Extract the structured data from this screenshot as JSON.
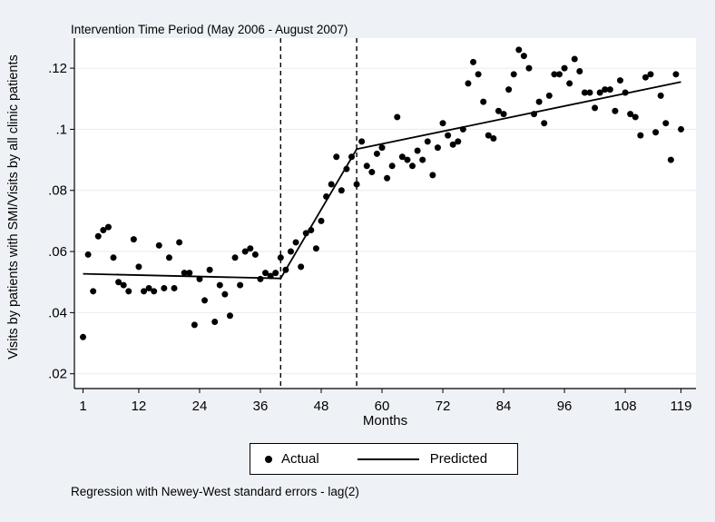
{
  "title": "Intervention Time Period (May 2006 - August 2007)",
  "footnote": "Regression with Newey-West standard errors - lag(2)",
  "axes": {
    "x": {
      "label": "Months"
    },
    "y": {
      "label": "Visits by patients with SMI/Visits by all clinic patients"
    }
  },
  "legend": {
    "items": [
      {
        "marker": "filled-circle",
        "label": "Actual"
      },
      {
        "marker": "solid-line",
        "label": "Predicted"
      }
    ]
  },
  "colors": {
    "background": "#eef1f6",
    "plot_background": "#ffffff",
    "grid": "#e6ebf2",
    "marker": "#000000",
    "line": "#000000",
    "text": "#000000"
  },
  "chart_data": {
    "type": "scatter",
    "title": "Intervention Time Period (May 2006 - August 2007)",
    "xlabel": "Months",
    "ylabel": "Visits by patients with SMI/Visits by all clinic patients",
    "xlim": [
      -0.7,
      121.9
    ],
    "ylim": [
      0.015,
      0.13
    ],
    "x_ticks": [
      1,
      12,
      24,
      36,
      48,
      60,
      72,
      84,
      96,
      108,
      119
    ],
    "y_ticks": [
      0.02,
      0.04,
      0.06,
      0.08,
      0.1,
      0.12
    ],
    "y_tick_labels": [
      ".02",
      ".04",
      ".06",
      ".08",
      ".1",
      ".12"
    ],
    "grid": "horizontal",
    "legend_position": "bottom-center",
    "reference_lines_x": [
      40,
      55
    ],
    "series": [
      {
        "name": "Actual",
        "type": "scatter",
        "marker": "filled-circle",
        "color": "#000000",
        "x_start": 1,
        "y": [
          0.032,
          0.059,
          0.047,
          0.065,
          0.067,
          0.068,
          0.058,
          0.05,
          0.049,
          0.047,
          0.064,
          0.055,
          0.047,
          0.048,
          0.047,
          0.062,
          0.048,
          0.058,
          0.048,
          0.063,
          0.053,
          0.053,
          0.036,
          0.051,
          0.044,
          0.054,
          0.037,
          0.049,
          0.046,
          0.039,
          0.058,
          0.049,
          0.06,
          0.061,
          0.059,
          0.051,
          0.053,
          0.052,
          0.053,
          0.058,
          0.054,
          0.06,
          0.063,
          0.055,
          0.066,
          0.067,
          0.061,
          0.07,
          0.078,
          0.082,
          0.091,
          0.08,
          0.087,
          0.091,
          0.082,
          0.096,
          0.088,
          0.086,
          0.092,
          0.094,
          0.084,
          0.088,
          0.104,
          0.091,
          0.09,
          0.088,
          0.093,
          0.09,
          0.096,
          0.085,
          0.094,
          0.102,
          0.098,
          0.095,
          0.096,
          0.1,
          0.115,
          0.122,
          0.118,
          0.109,
          0.098,
          0.097,
          0.106,
          0.105,
          0.113,
          0.118,
          0.126,
          0.124,
          0.12,
          0.105,
          0.109,
          0.102,
          0.111,
          0.118,
          0.118,
          0.12,
          0.115,
          0.123,
          0.119,
          0.112,
          0.112,
          0.107,
          0.112,
          0.113,
          0.113,
          0.106,
          0.116,
          0.112,
          0.105,
          0.104,
          0.098,
          0.117,
          0.118,
          0.099,
          0.111,
          0.102,
          0.09,
          0.118,
          0.1
        ]
      },
      {
        "name": "Predicted",
        "type": "line",
        "color": "#000000",
        "points": [
          [
            1,
            0.0527
          ],
          [
            40,
            0.0512
          ],
          [
            55,
            0.0935
          ],
          [
            119,
            0.1155
          ]
        ]
      }
    ]
  }
}
